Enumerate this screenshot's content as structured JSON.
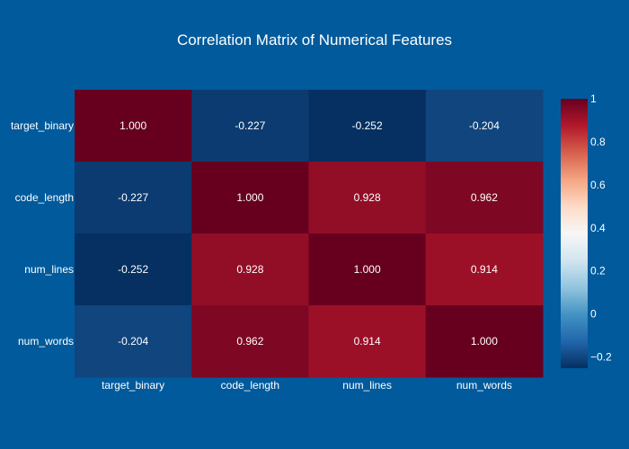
{
  "chart_data": {
    "type": "heatmap",
    "title": "Correlation Matrix of Numerical Features",
    "xlabel": "",
    "ylabel": "",
    "x_categories": [
      "target_binary",
      "code_length",
      "num_lines",
      "num_words"
    ],
    "y_categories": [
      "target_binary",
      "code_length",
      "num_lines",
      "num_words"
    ],
    "z": [
      [
        1.0,
        -0.227,
        -0.252,
        -0.204
      ],
      [
        -0.227,
        1.0,
        0.928,
        0.962
      ],
      [
        -0.252,
        0.928,
        1.0,
        0.914
      ],
      [
        -0.204,
        0.962,
        0.914,
        1.0
      ]
    ],
    "cell_labels": [
      [
        "1.000",
        "-0.227",
        "-0.252",
        "-0.204"
      ],
      [
        "-0.227",
        "1.000",
        "0.928",
        "0.962"
      ],
      [
        "-0.252",
        "0.928",
        "1.000",
        "0.914"
      ],
      [
        "-0.204",
        "0.962",
        "0.914",
        "1.000"
      ]
    ],
    "zrange": [
      -0.252,
      1.0
    ],
    "colorscale": "RdBu",
    "colorbar_ticks": [
      {
        "value": 1,
        "label": "1"
      },
      {
        "value": 0.8,
        "label": "0.8"
      },
      {
        "value": 0.6,
        "label": "0.6"
      },
      {
        "value": 0.4,
        "label": "0.4"
      },
      {
        "value": 0.2,
        "label": "0.2"
      },
      {
        "value": 0,
        "label": "0"
      },
      {
        "value": -0.2,
        "label": "−0.2"
      }
    ],
    "background_color": "#005a9c",
    "grid": false
  }
}
